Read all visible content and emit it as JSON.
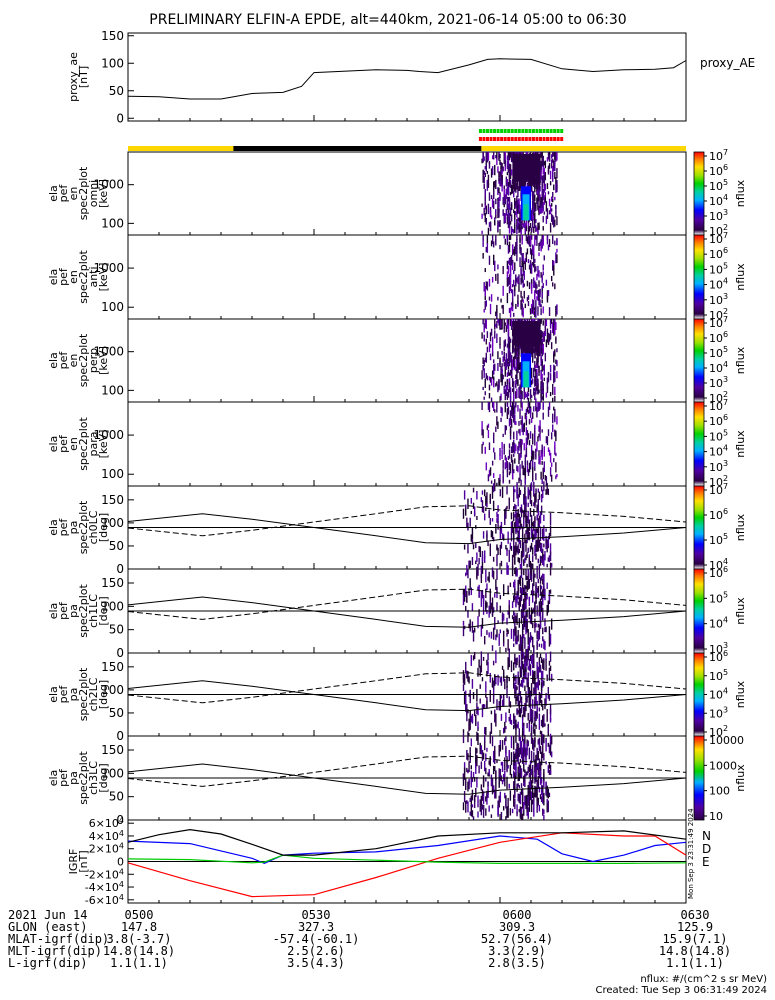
{
  "title": "PRELIMINARY ELFIN-A EPDE, alt=440km, 2021-06-14 05:00 to 06:30",
  "chart_data": {
    "type": "line",
    "time_range": [
      "05:00",
      "06:30"
    ],
    "panels": [
      {
        "id": "proxy_ae",
        "ylabel": "proxy_ae\n[nT]",
        "legend": "proxy_AE",
        "ylim": [
          -5,
          155
        ],
        "yticks": [
          "0",
          "50",
          "100",
          "150"
        ],
        "series": [
          {
            "x": [
              "05:00",
              "05:05",
              "05:10",
              "05:15",
              "05:20",
              "05:25",
              "05:28",
              "05:30",
              "05:40",
              "05:45",
              "05:47",
              "05:50",
              "05:55",
              "05:58",
              "06:00",
              "06:05",
              "06:10",
              "06:15",
              "06:20",
              "06:25",
              "06:28",
              "06:30"
            ],
            "y": [
              40,
              39,
              35,
              35,
              45,
              47,
              58,
              83,
              88,
              87,
              85,
              83,
              97,
              107,
              108,
              107,
              90,
              85,
              88,
              89,
              92,
              105
            ]
          }
        ]
      },
      {
        "id": "en_omni",
        "kind": "spectrogram",
        "ylabel": "ela\npef\nen\nspec2plot\nomni\n[keV]",
        "ylog": true,
        "yticks": [
          "100",
          "1000"
        ],
        "cbar": {
          "label": "nflux",
          "ticks": [
            "10^2",
            "10^3",
            "10^4",
            "10^5",
            "10^6",
            "10^7"
          ]
        }
      },
      {
        "id": "en_anti",
        "kind": "spectrogram",
        "ylabel": "ela\npef\nen\nspec2plot\nanti\n[keV]",
        "ylog": true,
        "yticks": [
          "100",
          "1000"
        ],
        "cbar": {
          "label": "nflux",
          "ticks": [
            "10^2",
            "10^3",
            "10^4",
            "10^5",
            "10^6",
            "10^7"
          ]
        }
      },
      {
        "id": "en_perp",
        "kind": "spectrogram",
        "ylabel": "ela\npef\nen\nspec2plot\nperp\n[keV]",
        "ylog": true,
        "yticks": [
          "100",
          "1000"
        ],
        "cbar": {
          "label": "nflux",
          "ticks": [
            "10^2",
            "10^3",
            "10^4",
            "10^5",
            "10^6",
            "10^7"
          ]
        }
      },
      {
        "id": "en_para",
        "kind": "spectrogram",
        "ylabel": "ela\npef\nen\nspec2plot\npara\n[keV]",
        "ylog": true,
        "yticks": [
          "100",
          "1000"
        ],
        "cbar": {
          "label": "nflux",
          "ticks": [
            "10^2",
            "10^3",
            "10^4",
            "10^5",
            "10^6",
            "10^7"
          ]
        }
      },
      {
        "id": "pa_ch0",
        "kind": "spectrogram",
        "ylabel": "ela\npef\npa\nspec2plot\nch0LC\n[deg]",
        "ylim": [
          0,
          180
        ],
        "yticks": [
          "0",
          "50",
          "100",
          "150"
        ],
        "cbar": {
          "label": "nflux",
          "ticks": [
            "10^4",
            "10^5",
            "10^6",
            "10^7"
          ]
        }
      },
      {
        "id": "pa_ch1",
        "kind": "spectrogram",
        "ylabel": "ela\npef\npa\nspec2plot\nch1LC\n[deg]",
        "ylim": [
          0,
          180
        ],
        "yticks": [
          "0",
          "50",
          "100",
          "150"
        ],
        "cbar": {
          "label": "nflux",
          "ticks": [
            "10^3",
            "10^4",
            "10^5",
            "10^6"
          ]
        }
      },
      {
        "id": "pa_ch2",
        "kind": "spectrogram",
        "ylabel": "ela\npef\npa\nspec2plot\nch2LC\n[deg]",
        "ylim": [
          0,
          180
        ],
        "yticks": [
          "0",
          "50",
          "100",
          "150"
        ],
        "cbar": {
          "label": "nflux",
          "ticks": [
            "10^2",
            "10^3",
            "10^4",
            "10^5",
            "10^6"
          ]
        }
      },
      {
        "id": "pa_ch3",
        "kind": "spectrogram",
        "ylabel": "ela\npef\npa\nspec2plot\nch3LC\n[deg]",
        "ylim": [
          0,
          180
        ],
        "yticks": [
          "0",
          "50",
          "100",
          "150"
        ],
        "cbar": {
          "label": "nflux",
          "ticks": [
            "10",
            "100",
            "1000",
            "10000"
          ]
        }
      },
      {
        "id": "igrf",
        "ylabel": "IGRF\n[nT]",
        "ylim": [
          -65000,
          65000
        ],
        "yticks": [
          "-6×10^4",
          "-4×10^4",
          "-2×10^4",
          "0",
          "2×10^4",
          "4×10^4",
          "6×10^4"
        ],
        "series": [
          {
            "name": "N",
            "color": "#0000ff",
            "x": [
              0,
              10,
              20,
              22,
              25,
              30,
              40,
              50,
              60,
              66,
              70,
              75,
              80,
              85,
              90
            ],
            "y": [
              32000,
              28000,
              5000,
              -3000,
              10000,
              13000,
              15000,
              25000,
              40000,
              35000,
              12000,
              0,
              10000,
              25000,
              30000
            ]
          },
          {
            "name": "D",
            "color": "#ff0000",
            "x": [
              0,
              10,
              20,
              30,
              40,
              50,
              60,
              70,
              80,
              85,
              90
            ],
            "y": [
              -2000,
              -30000,
              -55000,
              -52000,
              -25000,
              5000,
              30000,
              45000,
              40000,
              40000,
              10000
            ]
          },
          {
            "name": "E",
            "color": "#00cc00",
            "x": [
              0,
              10,
              20,
              22,
              25,
              30,
              40,
              50,
              60,
              70,
              80,
              90
            ],
            "y": [
              4000,
              3000,
              -2000,
              -1000,
              10000,
              5000,
              2000,
              -1000,
              -3000,
              -3000,
              -3000,
              -2000
            ]
          },
          {
            "name": "total",
            "color": "#000000",
            "x": [
              0,
              5,
              10,
              15,
              20,
              25,
              30,
              40,
              50,
              60,
              70,
              80,
              90
            ],
            "y": [
              30000,
              42000,
              50000,
              43000,
              27000,
              10000,
              10000,
              20000,
              40000,
              45000,
              45000,
              48000,
              35000
            ]
          }
        ]
      }
    ],
    "colorbar_name": "nflux"
  },
  "orbit_table": {
    "row_labels": [
      "2021 Jun 14",
      "GLON (east)",
      "MLAT-igrf(dip)",
      "MLT-igrf(dip)",
      "L-igrf(dip)"
    ],
    "columns": [
      [
        "0500",
        "147.8",
        "3.8(-3.7)",
        "14.8(14.8)",
        "1.1(1.1)"
      ],
      [
        "0530",
        "327.3",
        "-57.4(-60.1)",
        "2.5(2.6)",
        "3.5(4.3)"
      ],
      [
        "0600",
        "309.3",
        "52.7(56.4)",
        "3.3(2.9)",
        "2.8(3.5)"
      ],
      [
        "0630",
        "125.9",
        "15.9(7.1)",
        "14.8(14.8)",
        "1.1(1.1)"
      ]
    ]
  },
  "footer": {
    "units": "nflux: #/(cm^2 s sr MeV)",
    "created": "Created: Tue Sep  3 06:31:49 2024"
  },
  "side_stamp": "Mon Sep  3 23:31:49 2024"
}
